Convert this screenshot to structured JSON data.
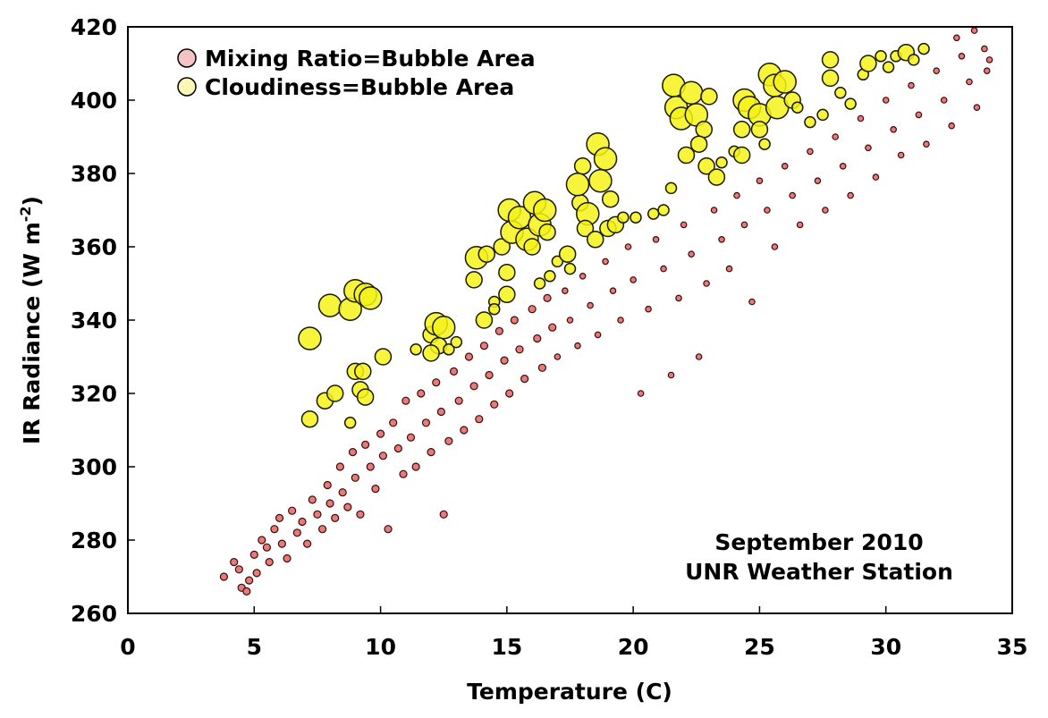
{
  "chart_data": {
    "type": "scatter",
    "title": "",
    "xlabel": "Temperature (C)",
    "ylabel": "IR Radiance (W m-2)",
    "ylabel_parts": {
      "main": "IR Radiance (W  m",
      "sup": "-2",
      "end": ")"
    },
    "xlim": [
      0,
      35
    ],
    "ylim": [
      260,
      420
    ],
    "xticks": [
      "0",
      "5",
      "10",
      "15",
      "20",
      "25",
      "30",
      "35"
    ],
    "yticks": [
      "260",
      "280",
      "300",
      "320",
      "340",
      "360",
      "380",
      "400",
      "420"
    ],
    "grid": false,
    "legend_placement": "top-left",
    "annotation": [
      "September 2010",
      "UNR Weather Station"
    ],
    "series": [
      {
        "name": "Mixing Ratio=Bubble Area",
        "color": "#e87a7a",
        "legend_color": "#f4c3c3",
        "edge": "#3a0a0a",
        "points_format": "[temperature, radiance, relative_size]",
        "points": [
          [
            3.8,
            270,
            2
          ],
          [
            4.2,
            274,
            2
          ],
          [
            4.4,
            272,
            2
          ],
          [
            4.5,
            267,
            2
          ],
          [
            4.7,
            266,
            2
          ],
          [
            4.8,
            269,
            2
          ],
          [
            5.0,
            276,
            2
          ],
          [
            5.1,
            271,
            2
          ],
          [
            5.3,
            280,
            2
          ],
          [
            5.5,
            278,
            2
          ],
          [
            5.6,
            274,
            2
          ],
          [
            5.8,
            283,
            2
          ],
          [
            6.0,
            286,
            2
          ],
          [
            6.1,
            279,
            2
          ],
          [
            6.3,
            275,
            2
          ],
          [
            6.5,
            288,
            2
          ],
          [
            6.7,
            282,
            2
          ],
          [
            6.9,
            285,
            2
          ],
          [
            7.1,
            279,
            2
          ],
          [
            7.3,
            291,
            2
          ],
          [
            7.5,
            287,
            2
          ],
          [
            7.7,
            283,
            2
          ],
          [
            7.9,
            295,
            2
          ],
          [
            8.0,
            290,
            2
          ],
          [
            8.2,
            286,
            2
          ],
          [
            8.4,
            300,
            2
          ],
          [
            8.5,
            293,
            2
          ],
          [
            8.7,
            289,
            2
          ],
          [
            8.9,
            304,
            2
          ],
          [
            9.0,
            297,
            2
          ],
          [
            9.2,
            287,
            2
          ],
          [
            9.4,
            306,
            2
          ],
          [
            9.6,
            300,
            2
          ],
          [
            9.8,
            294,
            2
          ],
          [
            10.0,
            309,
            2
          ],
          [
            10.1,
            303,
            2
          ],
          [
            10.3,
            283,
            2
          ],
          [
            10.5,
            312,
            2
          ],
          [
            10.7,
            305,
            2
          ],
          [
            10.9,
            298,
            2
          ],
          [
            11.0,
            318,
            2
          ],
          [
            11.2,
            308,
            2
          ],
          [
            11.4,
            300,
            2
          ],
          [
            11.6,
            320,
            2
          ],
          [
            11.8,
            312,
            2
          ],
          [
            12.0,
            304,
            2
          ],
          [
            12.2,
            323,
            2
          ],
          [
            12.4,
            315,
            2
          ],
          [
            12.5,
            287,
            2
          ],
          [
            12.7,
            307,
            2
          ],
          [
            12.9,
            326,
            2
          ],
          [
            13.1,
            318,
            2
          ],
          [
            13.3,
            310,
            2
          ],
          [
            13.5,
            330,
            2
          ],
          [
            13.7,
            322,
            2
          ],
          [
            13.9,
            313,
            2
          ],
          [
            14.1,
            333,
            2
          ],
          [
            14.3,
            325,
            2
          ],
          [
            14.5,
            317,
            2
          ],
          [
            14.7,
            337,
            2
          ],
          [
            14.9,
            329,
            2
          ],
          [
            15.1,
            320,
            2
          ],
          [
            15.3,
            340,
            2
          ],
          [
            15.5,
            332,
            2
          ],
          [
            15.7,
            324,
            2
          ],
          [
            16.0,
            343,
            2
          ],
          [
            16.2,
            335,
            2
          ],
          [
            16.4,
            327,
            2
          ],
          [
            16.6,
            346,
            2
          ],
          [
            16.8,
            338,
            2
          ],
          [
            17.0,
            330,
            1
          ],
          [
            17.3,
            348,
            1
          ],
          [
            17.5,
            340,
            1
          ],
          [
            17.8,
            333,
            1
          ],
          [
            18.0,
            352,
            1
          ],
          [
            18.3,
            344,
            1
          ],
          [
            18.6,
            336,
            1
          ],
          [
            18.9,
            356,
            1
          ],
          [
            19.2,
            348,
            1
          ],
          [
            19.5,
            340,
            1
          ],
          [
            19.8,
            360,
            1
          ],
          [
            20.0,
            351,
            1
          ],
          [
            20.3,
            320,
            1
          ],
          [
            20.6,
            343,
            1
          ],
          [
            20.9,
            362,
            1
          ],
          [
            21.2,
            354,
            1
          ],
          [
            21.5,
            325,
            1
          ],
          [
            21.8,
            346,
            1
          ],
          [
            22.0,
            366,
            1
          ],
          [
            22.3,
            358,
            1
          ],
          [
            22.6,
            330,
            1
          ],
          [
            22.9,
            350,
            1
          ],
          [
            23.2,
            370,
            1
          ],
          [
            23.5,
            362,
            1
          ],
          [
            23.8,
            354,
            1
          ],
          [
            24.1,
            374,
            1
          ],
          [
            24.4,
            366,
            1
          ],
          [
            24.7,
            345,
            1
          ],
          [
            25.0,
            378,
            1
          ],
          [
            25.3,
            370,
            1
          ],
          [
            25.6,
            360,
            1
          ],
          [
            26.0,
            382,
            1
          ],
          [
            26.3,
            374,
            1
          ],
          [
            26.6,
            366,
            1
          ],
          [
            27.0,
            386,
            1
          ],
          [
            27.3,
            378,
            1
          ],
          [
            27.6,
            370,
            1
          ],
          [
            28.0,
            390,
            1
          ],
          [
            28.3,
            382,
            1
          ],
          [
            28.6,
            374,
            1
          ],
          [
            29.0,
            395,
            1
          ],
          [
            29.3,
            387,
            1
          ],
          [
            29.6,
            379,
            1
          ],
          [
            30.0,
            400,
            1
          ],
          [
            30.3,
            392,
            1
          ],
          [
            30.6,
            385,
            1
          ],
          [
            31.0,
            404,
            1
          ],
          [
            31.3,
            396,
            1
          ],
          [
            31.6,
            388,
            1
          ],
          [
            32.0,
            408,
            1
          ],
          [
            32.3,
            400,
            1
          ],
          [
            32.6,
            393,
            1
          ],
          [
            33.0,
            412,
            1
          ],
          [
            33.3,
            405,
            1
          ],
          [
            33.6,
            398,
            1
          ],
          [
            33.9,
            414,
            1
          ],
          [
            34.0,
            408,
            1
          ],
          [
            32.8,
            417,
            1
          ],
          [
            33.5,
            419,
            1
          ],
          [
            34.1,
            411,
            1
          ]
        ]
      },
      {
        "name": "Cloudiness=Bubble Area",
        "color": "#f5f219",
        "legend_color": "#fbf7b5",
        "edge": "#1a1a00",
        "points_format": "[temperature, radiance, relative_size]",
        "points": [
          [
            7.2,
            335,
            3
          ],
          [
            7.2,
            313,
            2
          ],
          [
            7.8,
            318,
            2
          ],
          [
            8.2,
            320,
            2
          ],
          [
            8.8,
            312,
            1
          ],
          [
            8.0,
            344,
            3
          ],
          [
            8.8,
            343,
            3
          ],
          [
            9.0,
            348,
            3
          ],
          [
            9.4,
            347,
            3
          ],
          [
            9.6,
            346,
            3
          ],
          [
            9.0,
            326,
            2
          ],
          [
            9.3,
            326,
            2
          ],
          [
            9.2,
            321,
            2
          ],
          [
            9.4,
            319,
            2
          ],
          [
            10.1,
            330,
            2
          ],
          [
            11.4,
            332,
            1
          ],
          [
            12.0,
            336,
            2
          ],
          [
            12.2,
            339,
            3
          ],
          [
            12.5,
            338,
            3
          ],
          [
            12.3,
            333,
            2
          ],
          [
            12.0,
            331,
            2
          ],
          [
            12.7,
            332,
            1
          ],
          [
            13.0,
            334,
            1
          ],
          [
            13.7,
            351,
            2
          ],
          [
            13.8,
            357,
            3
          ],
          [
            14.2,
            358,
            2
          ],
          [
            14.1,
            340,
            2
          ],
          [
            14.5,
            345,
            1
          ],
          [
            14.5,
            343,
            1
          ],
          [
            14.8,
            360,
            2
          ],
          [
            15.0,
            347,
            2
          ],
          [
            15.0,
            353,
            2
          ],
          [
            15.1,
            370,
            3
          ],
          [
            15.2,
            364,
            3
          ],
          [
            15.5,
            368,
            3
          ],
          [
            15.8,
            362,
            3
          ],
          [
            16.1,
            372,
            3
          ],
          [
            16.3,
            366,
            3
          ],
          [
            16.0,
            360,
            2
          ],
          [
            16.5,
            370,
            3
          ],
          [
            16.6,
            364,
            2
          ],
          [
            16.3,
            350,
            1
          ],
          [
            16.7,
            352,
            1
          ],
          [
            17.0,
            356,
            1
          ],
          [
            17.4,
            358,
            2
          ],
          [
            17.5,
            354,
            1
          ],
          [
            17.9,
            372,
            2
          ],
          [
            18.0,
            382,
            2
          ],
          [
            17.8,
            377,
            3
          ],
          [
            18.2,
            369,
            3
          ],
          [
            18.6,
            388,
            3
          ],
          [
            18.9,
            384,
            3
          ],
          [
            18.7,
            378,
            3
          ],
          [
            18.1,
            365,
            2
          ],
          [
            18.5,
            362,
            2
          ],
          [
            19.1,
            373,
            2
          ],
          [
            19.0,
            365,
            2
          ],
          [
            19.3,
            366,
            2
          ],
          [
            19.6,
            368,
            1
          ],
          [
            20.1,
            368,
            1
          ],
          [
            20.8,
            369,
            1
          ],
          [
            21.2,
            370,
            1
          ],
          [
            21.5,
            376,
            1
          ],
          [
            21.6,
            404,
            3
          ],
          [
            21.7,
            398,
            3
          ],
          [
            21.9,
            395,
            3
          ],
          [
            22.1,
            385,
            2
          ],
          [
            22.3,
            402,
            3
          ],
          [
            22.5,
            396,
            3
          ],
          [
            22.8,
            392,
            2
          ],
          [
            23.0,
            401,
            2
          ],
          [
            22.6,
            388,
            2
          ],
          [
            22.9,
            382,
            2
          ],
          [
            23.3,
            379,
            2
          ],
          [
            23.5,
            383,
            1
          ],
          [
            24.0,
            386,
            1
          ],
          [
            24.3,
            392,
            2
          ],
          [
            24.4,
            400,
            3
          ],
          [
            24.6,
            398,
            3
          ],
          [
            24.3,
            385,
            2
          ],
          [
            25.0,
            396,
            3
          ],
          [
            25.0,
            392,
            2
          ],
          [
            25.4,
            407,
            3
          ],
          [
            25.6,
            404,
            3
          ],
          [
            25.7,
            398,
            3
          ],
          [
            26.0,
            405,
            3
          ],
          [
            26.3,
            400,
            2
          ],
          [
            25.2,
            388,
            1
          ],
          [
            26.5,
            398,
            1
          ],
          [
            27.0,
            394,
            1
          ],
          [
            27.5,
            396,
            1
          ],
          [
            27.8,
            411,
            2
          ],
          [
            27.8,
            406,
            2
          ],
          [
            28.2,
            402,
            1
          ],
          [
            28.6,
            399,
            1
          ],
          [
            29.1,
            407,
            1
          ],
          [
            29.3,
            410,
            2
          ],
          [
            29.8,
            412,
            1
          ],
          [
            30.1,
            409,
            1
          ],
          [
            30.4,
            412,
            1
          ],
          [
            30.8,
            413,
            2
          ],
          [
            31.1,
            411,
            1
          ],
          [
            31.5,
            414,
            1
          ]
        ]
      }
    ]
  }
}
